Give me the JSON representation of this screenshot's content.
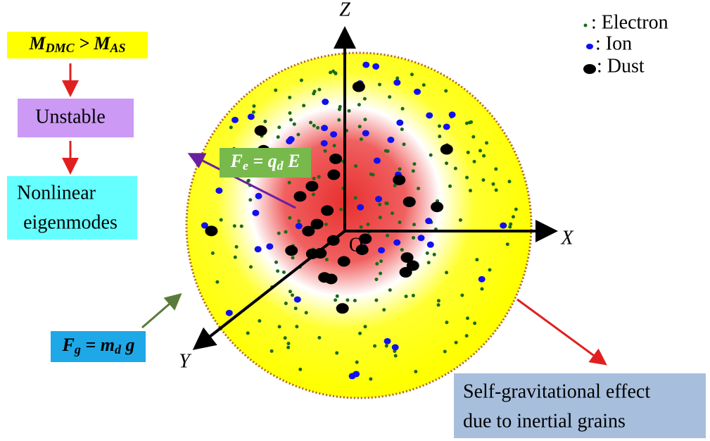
{
  "flow": {
    "condition": [
      "M",
      "DMC",
      " > ",
      "M",
      "AS"
    ],
    "state": "Unstable",
    "result": [
      "Nonlinear",
      "eigenmodes"
    ]
  },
  "forces": {
    "electric": [
      "F",
      "e",
      " = ",
      "q",
      "d",
      " E"
    ],
    "gravity": [
      "F",
      "g",
      " = ",
      "m",
      "d",
      " g"
    ]
  },
  "axes": {
    "z": "Z",
    "x": "X",
    "y": "Y",
    "origin": "O"
  },
  "legend": [
    ": Electron",
    ": Ion",
    ": Dust"
  ],
  "note": [
    "Self-gravitational effect",
    "due to inertial grains"
  ]
}
